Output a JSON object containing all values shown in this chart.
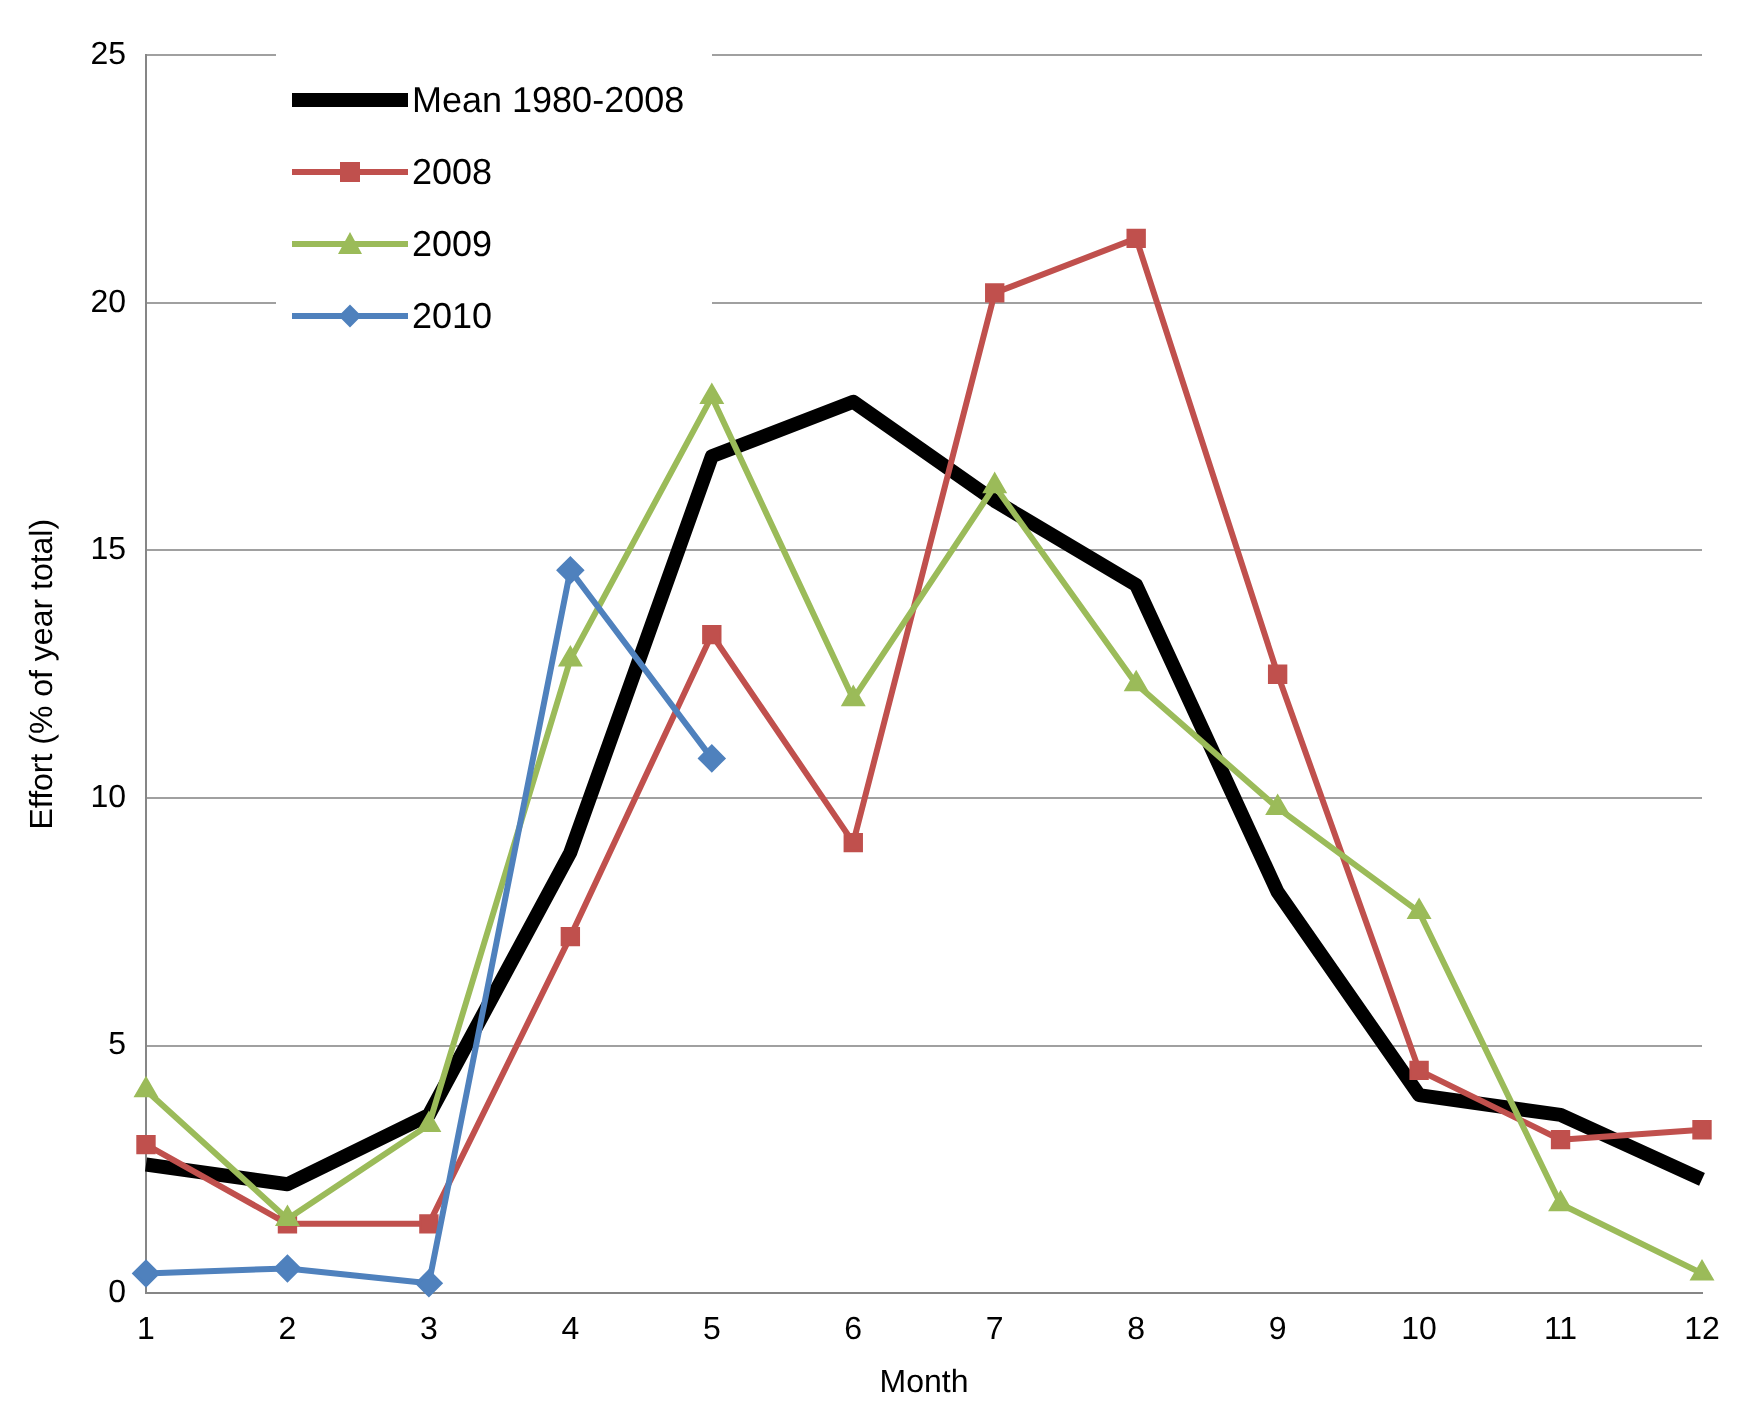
{
  "chart_data": {
    "type": "line",
    "xlabel": "Month",
    "ylabel": "Effort (% of year total)",
    "x": [
      1,
      2,
      3,
      4,
      5,
      6,
      7,
      8,
      9,
      10,
      11,
      12
    ],
    "series": [
      {
        "name": "Mean 1980-2008",
        "color": "#000000",
        "marker": "none",
        "values": [
          2.6,
          2.2,
          3.6,
          8.9,
          16.9,
          18.0,
          16.0,
          14.3,
          8.1,
          4.0,
          3.6,
          2.3
        ]
      },
      {
        "name": "2008",
        "color": "#c0504d",
        "marker": "square",
        "values": [
          3.0,
          1.4,
          1.4,
          7.2,
          13.3,
          9.1,
          20.2,
          21.3,
          12.5,
          4.5,
          3.1,
          3.3
        ]
      },
      {
        "name": "2009",
        "color": "#9bbb59",
        "marker": "triangle",
        "values": [
          4.1,
          1.5,
          3.4,
          12.8,
          18.1,
          12.0,
          16.3,
          12.3,
          9.8,
          7.7,
          1.8,
          0.4
        ]
      },
      {
        "name": "2010",
        "color": "#4f81bd",
        "marker": "diamond",
        "values": [
          0.4,
          0.5,
          0.2,
          14.6,
          10.8,
          null,
          null,
          null,
          null,
          null,
          null,
          null
        ]
      }
    ],
    "xlim": [
      1,
      12
    ],
    "xticks": [
      1,
      2,
      3,
      4,
      5,
      6,
      7,
      8,
      9,
      10,
      11,
      12
    ],
    "ylim": [
      0,
      25
    ],
    "yticks": [
      0,
      5,
      10,
      15,
      20,
      25
    ],
    "grid": "y",
    "legend": "top left",
    "line_style": "solid"
  }
}
